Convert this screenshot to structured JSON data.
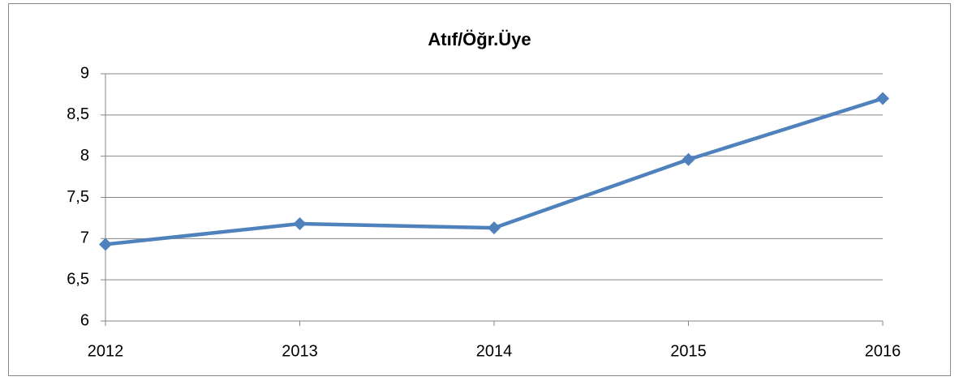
{
  "chart_data": {
    "type": "line",
    "title": "Atıf/Öğr.Üye",
    "categories": [
      "2012",
      "2013",
      "2014",
      "2015",
      "2016"
    ],
    "series": [
      {
        "name": "Atıf/Öğr.Üye",
        "color": "#4f81bd",
        "values": [
          6.93,
          7.18,
          7.13,
          7.96,
          8.7
        ]
      }
    ],
    "ylim": [
      6,
      9
    ],
    "yticks": [
      6,
      {
        "value": 6.5,
        "label": "6,5"
      },
      7,
      {
        "value": 7.5,
        "label": "7,5"
      },
      8,
      {
        "value": 8.5,
        "label": "8,5"
      },
      9
    ],
    "grid": true
  }
}
